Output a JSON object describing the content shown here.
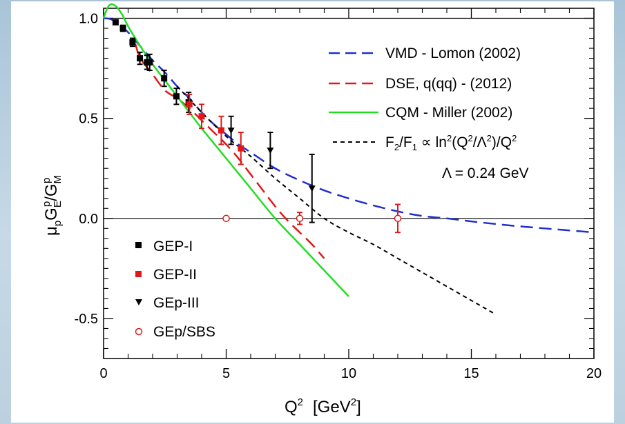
{
  "chart_data": {
    "type": "line",
    "xlim": [
      0,
      20
    ],
    "ylim": [
      -0.7,
      1.05
    ],
    "x_ticks": [
      0,
      5,
      10,
      15,
      20
    ],
    "y_ticks": [
      -0.5,
      0.0,
      0.5,
      1.0
    ],
    "x_tick_labels": [
      "0",
      "5",
      "10",
      "15",
      "20"
    ],
    "y_tick_labels": [
      "-0.5",
      "0.0",
      "0.5",
      "1.0"
    ],
    "xlabel": "Q² [GeV²]",
    "ylabel": "μpGpE/GpM",
    "reference_lines": [
      0.0,
      1.0
    ],
    "grid": false,
    "legend_position": "top-right (curves), lower-left (data)",
    "curves": [
      {
        "name": "VMD - Lomon (2002)",
        "color": "#1f2fd0",
        "style": "long-dash",
        "x": [
          0,
          0.3,
          0.6,
          1,
          1.5,
          2,
          2.5,
          3,
          3.5,
          4,
          4.5,
          5,
          5.5,
          6,
          7,
          8,
          9,
          10,
          11,
          12,
          13,
          14,
          15,
          16,
          17,
          18,
          19,
          20
        ],
        "y": [
          1.0,
          0.995,
          0.97,
          0.93,
          0.86,
          0.79,
          0.73,
          0.66,
          0.6,
          0.53,
          0.47,
          0.42,
          0.37,
          0.33,
          0.25,
          0.19,
          0.14,
          0.1,
          0.065,
          0.035,
          0.012,
          0.0,
          -0.015,
          -0.028,
          -0.04,
          -0.05,
          -0.06,
          -0.07
        ]
      },
      {
        "name": "DSE, q(qq) - (2012)",
        "color": "#e01818",
        "style": "long-dash",
        "x": [
          1.3,
          1.5,
          2,
          2.5,
          3,
          3.5,
          4,
          4.5,
          5,
          5.5,
          6,
          6.5,
          7,
          7.5,
          8,
          8.5,
          9
        ],
        "y": [
          0.87,
          0.8,
          0.72,
          0.64,
          0.6,
          0.55,
          0.49,
          0.43,
          0.37,
          0.3,
          0.22,
          0.14,
          0.06,
          -0.01,
          -0.07,
          -0.13,
          -0.2
        ]
      },
      {
        "name": "CQM - Miller (2002)",
        "color": "#22dd22",
        "style": "solid",
        "x": [
          0,
          0.15,
          0.3,
          0.5,
          0.75,
          1,
          1.5,
          2,
          2.5,
          3,
          3.5,
          4,
          5,
          6,
          7,
          8,
          9,
          10
        ],
        "y": [
          1.0,
          1.05,
          1.07,
          1.06,
          1.02,
          0.96,
          0.86,
          0.77,
          0.69,
          0.61,
          0.53,
          0.45,
          0.3,
          0.15,
          0.0,
          -0.13,
          -0.26,
          -0.39
        ]
      },
      {
        "name": "F₂/F₁ ∝ ln²(Q²/Λ²)/Q²",
        "color": "#000000",
        "style": "short-dash",
        "x": [
          3,
          4,
          5,
          6,
          7,
          8,
          9,
          10,
          11,
          12,
          13,
          14,
          15,
          16
        ],
        "y": [
          0.66,
          0.53,
          0.41,
          0.31,
          0.2,
          0.1,
          -0.0,
          -0.07,
          -0.13,
          -0.2,
          -0.27,
          -0.34,
          -0.41,
          -0.48
        ]
      }
    ],
    "series": [
      {
        "name": "GEP-I",
        "color": "#000000",
        "marker": "filled-square",
        "points": [
          {
            "x": 0.49,
            "y": 0.98,
            "err": 0.01
          },
          {
            "x": 0.79,
            "y": 0.95,
            "err": 0.015
          },
          {
            "x": 1.18,
            "y": 0.88,
            "err": 0.02
          },
          {
            "x": 1.48,
            "y": 0.8,
            "err": 0.03
          },
          {
            "x": 1.77,
            "y": 0.78,
            "err": 0.035
          },
          {
            "x": 1.88,
            "y": 0.78,
            "err": 0.04
          },
          {
            "x": 2.47,
            "y": 0.7,
            "err": 0.04
          },
          {
            "x": 2.97,
            "y": 0.61,
            "err": 0.04
          },
          {
            "x": 3.47,
            "y": 0.58,
            "err": 0.05
          }
        ]
      },
      {
        "name": "GEP-II",
        "color": "#e01818",
        "marker": "filled-square",
        "points": [
          {
            "x": 3.5,
            "y": 0.57,
            "err": 0.05
          },
          {
            "x": 4.0,
            "y": 0.51,
            "err": 0.06
          },
          {
            "x": 4.8,
            "y": 0.44,
            "err": 0.07
          },
          {
            "x": 5.6,
            "y": 0.35,
            "err": 0.08
          }
        ]
      },
      {
        "name": "GEp-III",
        "color": "#000000",
        "marker": "filled-triangle-down",
        "points": [
          {
            "x": 5.2,
            "y": 0.44,
            "err": 0.07
          },
          {
            "x": 6.8,
            "y": 0.34,
            "err": 0.09
          },
          {
            "x": 8.5,
            "y": 0.15,
            "err": 0.17
          }
        ]
      },
      {
        "name": "GEp/SBS",
        "color": "#e01818",
        "marker": "open-circle",
        "points": [
          {
            "x": 5.0,
            "y": 0.0,
            "err": 0.0
          },
          {
            "x": 8.0,
            "y": 0.0,
            "err": 0.03
          },
          {
            "x": 12.0,
            "y": 0.0,
            "err": 0.07
          }
        ]
      }
    ]
  },
  "legend_curves": {
    "vmd": "VMD - Lomon (2002)",
    "dse": "DSE, q(qq) - (2012)",
    "cqm": "CQM - Miller (2002)",
    "pqcd_f": "F",
    "pqcd_2": "2",
    "pqcd_slash": "/F",
    "pqcd_1": "1",
    "pqcd_prop": " ∝ ln",
    "pqcd_sq1": "2",
    "pqcd_q": "(Q",
    "pqcd_sq2": "2",
    "pqcd_lam": "/Λ",
    "pqcd_sq3": "2",
    "pqcd_close": ")/Q",
    "pqcd_sq4": "2",
    "lambda": "Λ = 0.24 GeV"
  },
  "legend_data": {
    "gep1": "GEP-I",
    "gep2": "GEP-II",
    "gep3": "GEp-III",
    "sbs": "GEp/SBS"
  },
  "axis_labels": {
    "x_main": "Q",
    "x_sup": "2",
    "x_unit_open": "[GeV",
    "x_unit_sup": "2",
    "x_unit_close": "]",
    "y_mu": "μ",
    "y_p1": "p",
    "y_G1": "G",
    "y_E": "E",
    "y_p2": "p",
    "y_slash": "/G",
    "y_M": "M",
    "y_p3": "p"
  }
}
